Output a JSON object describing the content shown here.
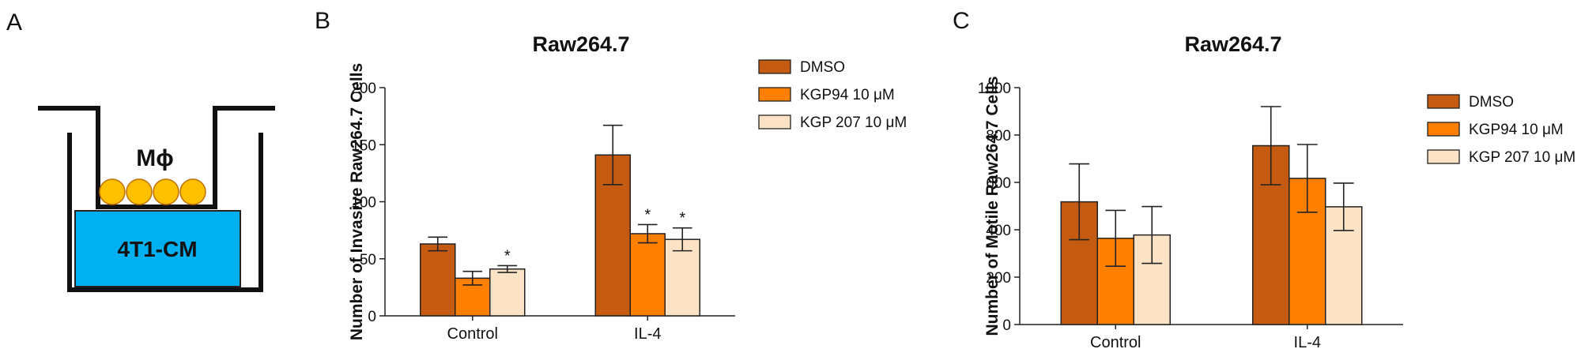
{
  "panel_a": {
    "label": "A",
    "cell_label": "Mϕ",
    "medium_label": "4T1-CM",
    "colors": {
      "medium": "#00b0f0",
      "cells": "#ffc000",
      "cell_stroke": "#c07000"
    }
  },
  "chart_data": [
    {
      "panel": "B",
      "type": "bar",
      "title": "Raw264.7",
      "xlabel": "",
      "ylabel": "Number of Invasive Raw264.7 Cells",
      "categories": [
        "Control",
        "IL-4"
      ],
      "ylim": [
        0,
        200
      ],
      "yticks": [
        0,
        50,
        100,
        150,
        200
      ],
      "legend_position": "top-right",
      "series": [
        {
          "name": "DMSO",
          "color": "#c55a11",
          "values": [
            63,
            141
          ],
          "errors": [
            6,
            26
          ],
          "significant": [
            false,
            false
          ]
        },
        {
          "name": "KGP94 10 μM",
          "color": "#ff7f00",
          "values": [
            33,
            72
          ],
          "errors": [
            6,
            8
          ],
          "significant": [
            false,
            true
          ]
        },
        {
          "name": "KGP 207 10 μM",
          "color": "#fde3c6",
          "values": [
            41,
            67
          ],
          "errors": [
            3,
            10
          ],
          "significant": [
            true,
            true
          ]
        }
      ],
      "significance_mark": "*"
    },
    {
      "panel": "C",
      "type": "bar",
      "title": "Raw264.7",
      "xlabel": "",
      "ylabel": "Number of Motile Raw264.7 Cells",
      "categories": [
        "Control",
        "IL-4"
      ],
      "ylim": [
        0,
        1000
      ],
      "yticks": [
        0,
        200,
        400,
        600,
        800,
        1000
      ],
      "legend_position": "top-right",
      "series": [
        {
          "name": "DMSO",
          "color": "#c55a11",
          "values": [
            518,
            755
          ],
          "errors": [
            160,
            165
          ],
          "significant": [
            false,
            false
          ]
        },
        {
          "name": "KGP94 10 μM",
          "color": "#ff7f00",
          "values": [
            364,
            617
          ],
          "errors": [
            118,
            143
          ],
          "significant": [
            false,
            false
          ]
        },
        {
          "name": "KGP 207 10 μM",
          "color": "#fde3c6",
          "values": [
            378,
            497
          ],
          "errors": [
            120,
            100
          ],
          "significant": [
            false,
            false
          ]
        }
      ],
      "significance_mark": "*"
    }
  ]
}
